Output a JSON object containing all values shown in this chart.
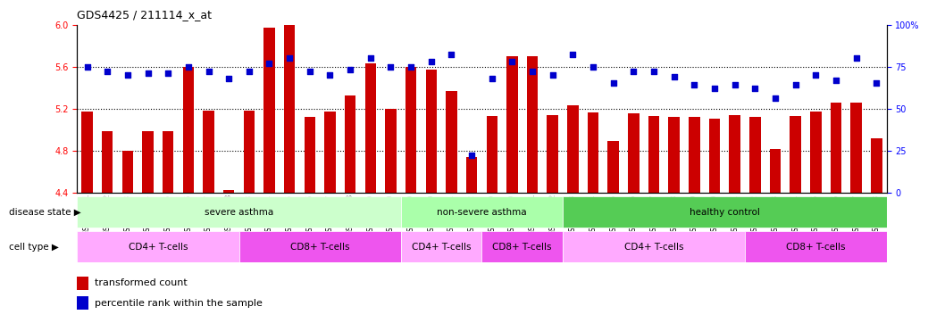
{
  "title": "GDS4425 / 211114_x_at",
  "samples": [
    "GSM788311",
    "GSM788312",
    "GSM788313",
    "GSM788314",
    "GSM788315",
    "GSM788316",
    "GSM788317",
    "GSM788318",
    "GSM788323",
    "GSM788324",
    "GSM788325",
    "GSM788326",
    "GSM788327",
    "GSM788328",
    "GSM788329",
    "GSM788330",
    "GSM788299",
    "GSM788300",
    "GSM788301",
    "GSM788302",
    "GSM788319",
    "GSM788320",
    "GSM788321",
    "GSM788322",
    "GSM788303",
    "GSM788304",
    "GSM788305",
    "GSM788306",
    "GSM788307",
    "GSM788308",
    "GSM788309",
    "GSM788310",
    "GSM788331",
    "GSM788332",
    "GSM788333",
    "GSM788334",
    "GSM788335",
    "GSM788336",
    "GSM788337",
    "GSM788338"
  ],
  "bar_values": [
    5.17,
    4.98,
    4.8,
    4.98,
    4.98,
    5.6,
    5.18,
    4.42,
    5.18,
    5.97,
    6.0,
    5.12,
    5.17,
    5.32,
    5.63,
    5.2,
    5.6,
    5.57,
    5.37,
    4.74,
    5.13,
    5.7,
    5.7,
    5.14,
    5.23,
    5.16,
    4.89,
    5.15,
    5.13,
    5.12,
    5.12,
    5.1,
    5.14,
    5.12,
    4.81,
    5.13,
    5.17,
    5.26,
    5.26,
    4.92
  ],
  "percentile_values": [
    75,
    72,
    70,
    71,
    71,
    75,
    72,
    68,
    72,
    77,
    80,
    72,
    70,
    73,
    80,
    75,
    75,
    78,
    82,
    22,
    68,
    78,
    72,
    70,
    82,
    75,
    65,
    72,
    72,
    69,
    64,
    62,
    64,
    62,
    56,
    64,
    70,
    67,
    80,
    65
  ],
  "ylim_left": [
    4.4,
    6.0
  ],
  "ylim_right": [
    0,
    100
  ],
  "yticks_left": [
    4.4,
    4.8,
    5.2,
    5.6,
    6.0
  ],
  "yticks_right": [
    0,
    25,
    50,
    75,
    100
  ],
  "bar_color": "#CC0000",
  "dot_color": "#0000CC",
  "disease_state_groups": [
    {
      "label": "severe asthma",
      "start": 0,
      "end": 15,
      "color": "#CCFFCC"
    },
    {
      "label": "non-severe asthma",
      "start": 16,
      "end": 23,
      "color": "#AAFFAA"
    },
    {
      "label": "healthy control",
      "start": 24,
      "end": 39,
      "color": "#55CC55"
    }
  ],
  "cell_type_groups": [
    {
      "label": "CD4+ T-cells",
      "start": 0,
      "end": 7,
      "color": "#FFAAFF"
    },
    {
      "label": "CD8+ T-cells",
      "start": 8,
      "end": 15,
      "color": "#EE55EE"
    },
    {
      "label": "CD4+ T-cells",
      "start": 16,
      "end": 19,
      "color": "#FFAAFF"
    },
    {
      "label": "CD8+ T-cells",
      "start": 20,
      "end": 23,
      "color": "#EE55EE"
    },
    {
      "label": "CD4+ T-cells",
      "start": 24,
      "end": 32,
      "color": "#FFAAFF"
    },
    {
      "label": "CD8+ T-cells",
      "start": 33,
      "end": 39,
      "color": "#EE55EE"
    }
  ],
  "dotted_line_values": [
    4.8,
    5.2,
    5.6
  ],
  "background_color": "#FFFFFF",
  "xtick_bg_color": "#DDDDDD"
}
